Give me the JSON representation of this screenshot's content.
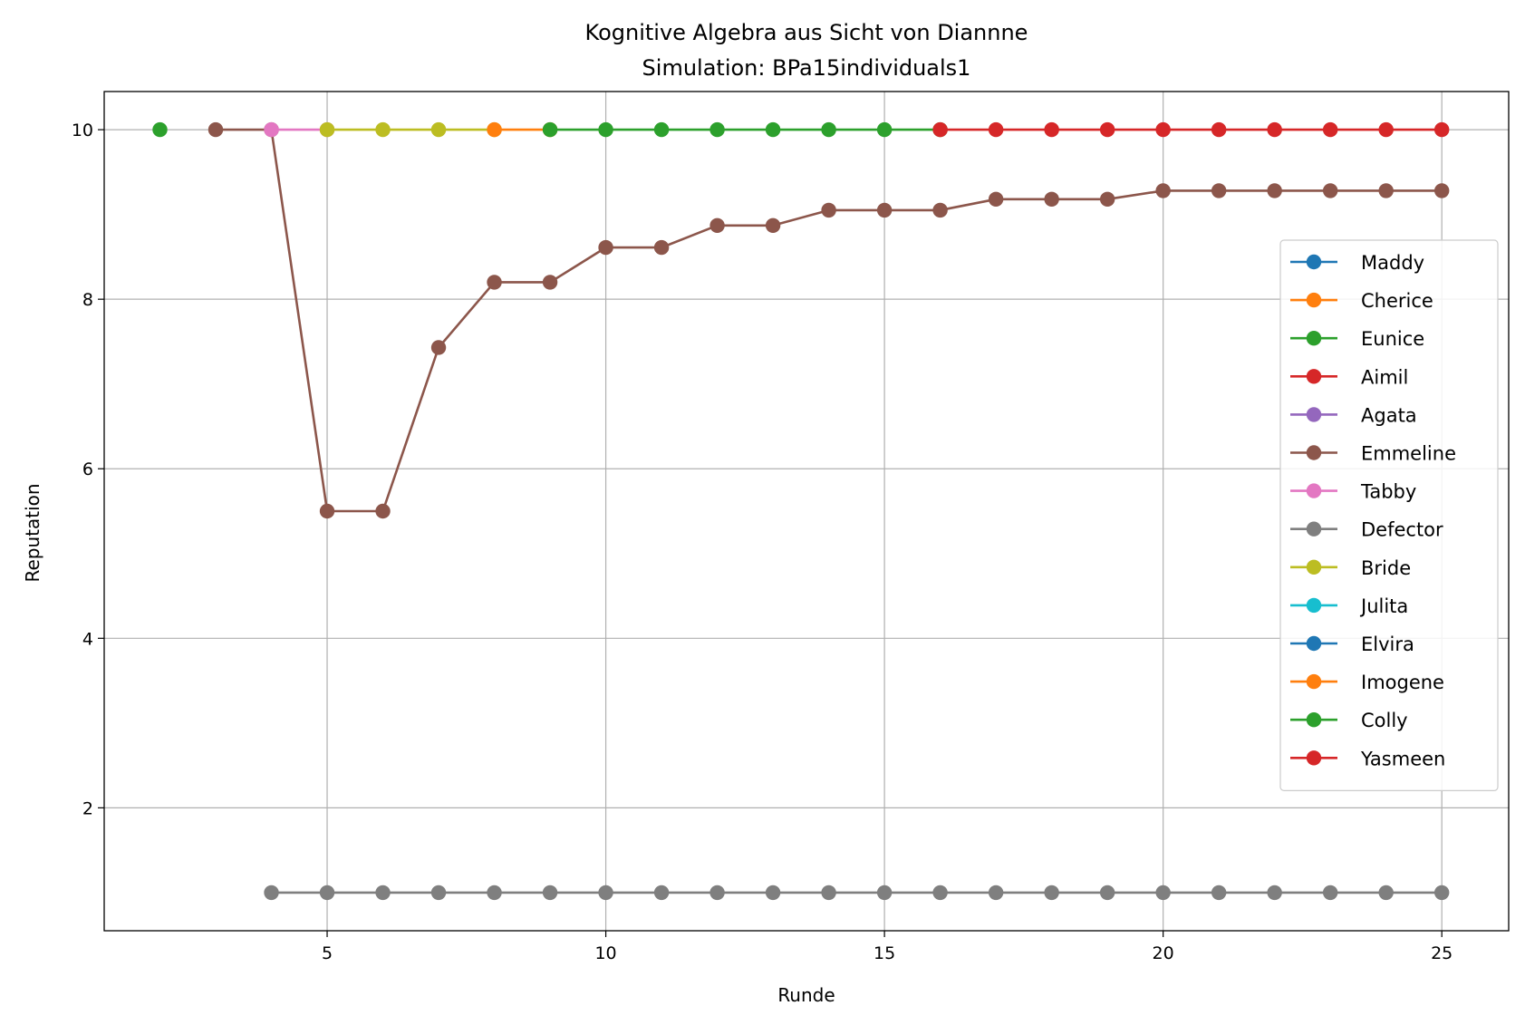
{
  "chart_data": {
    "type": "line",
    "title": "Kognitive Algebra aus Sicht von Diannne",
    "subtitle": "Simulation: BPa15individuals1",
    "xlabel": "Runde",
    "ylabel": "Reputation",
    "xlim": [
      1,
      26.2
    ],
    "ylim": [
      0.55,
      10.45
    ],
    "xticks": [
      5,
      10,
      15,
      20,
      25
    ],
    "yticks": [
      2,
      4,
      6,
      8,
      10
    ],
    "grid": true,
    "legend_position": "center-right",
    "series": [
      {
        "name": "Maddy",
        "color": "#1f77b4",
        "x": [],
        "y": []
      },
      {
        "name": "Cherice",
        "color": "#ff7f0e",
        "x": [],
        "y": []
      },
      {
        "name": "Eunice",
        "color": "#2ca02c",
        "x": [
          2
        ],
        "y": [
          10
        ]
      },
      {
        "name": "Aimil",
        "color": "#d62728",
        "x": [],
        "y": []
      },
      {
        "name": "Agata",
        "color": "#9467bd",
        "x": [],
        "y": []
      },
      {
        "name": "Emmeline",
        "color": "#8c564b",
        "x": [
          3,
          4,
          5,
          6,
          7,
          8,
          9,
          10,
          11,
          12,
          13,
          14,
          15,
          16,
          17,
          18,
          19,
          20,
          21,
          22,
          23,
          24,
          25
        ],
        "y": [
          10,
          10,
          5.5,
          5.5,
          7.43,
          8.2,
          8.2,
          8.61,
          8.61,
          8.87,
          8.87,
          9.05,
          9.05,
          9.05,
          9.18,
          9.18,
          9.18,
          9.28,
          9.28,
          9.28,
          9.28,
          9.28,
          9.28
        ]
      },
      {
        "name": "Tabby",
        "color": "#e377c2",
        "x": [
          4,
          5
        ],
        "y": [
          10,
          10
        ]
      },
      {
        "name": "Defector",
        "color": "#7f7f7f",
        "x": [
          4,
          5,
          6,
          7,
          8,
          9,
          10,
          11,
          12,
          13,
          14,
          15,
          16,
          17,
          18,
          19,
          20,
          21,
          22,
          23,
          24,
          25
        ],
        "y": [
          1,
          1,
          1,
          1,
          1,
          1,
          1,
          1,
          1,
          1,
          1,
          1,
          1,
          1,
          1,
          1,
          1,
          1,
          1,
          1,
          1,
          1
        ]
      },
      {
        "name": "Bride",
        "color": "#bcbd22",
        "x": [
          5,
          6,
          7,
          8
        ],
        "y": [
          10,
          10,
          10,
          10
        ]
      },
      {
        "name": "Julita",
        "color": "#17becf",
        "x": [],
        "y": []
      },
      {
        "name": "Elvira",
        "color": "#1f77b4",
        "x": [],
        "y": []
      },
      {
        "name": "Imogene",
        "color": "#ff7f0e",
        "x": [
          8,
          9
        ],
        "y": [
          10,
          10
        ]
      },
      {
        "name": "Colly",
        "color": "#2ca02c",
        "x": [
          9,
          10,
          11,
          12,
          13,
          14,
          15,
          16
        ],
        "y": [
          10,
          10,
          10,
          10,
          10,
          10,
          10,
          10
        ]
      },
      {
        "name": "Yasmeen",
        "color": "#d62728",
        "x": [
          16,
          17,
          18,
          19,
          20,
          21,
          22,
          23,
          24,
          25
        ],
        "y": [
          10,
          10,
          10,
          10,
          10,
          10,
          10,
          10,
          10,
          10
        ]
      }
    ]
  }
}
